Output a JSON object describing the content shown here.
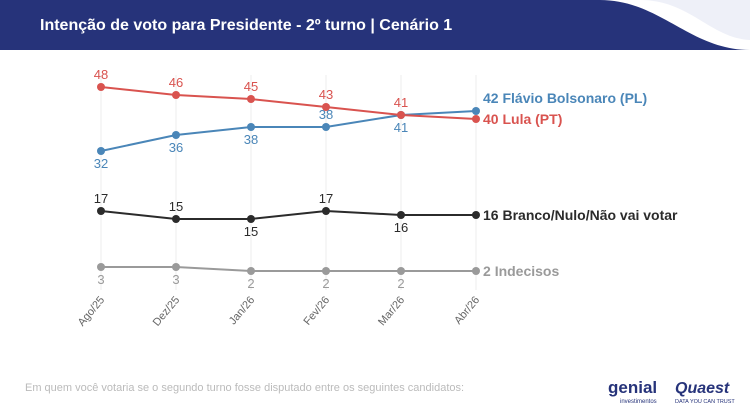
{
  "chart_data": {
    "type": "line",
    "title": "Intenção de voto para Presidente - 2º turno | Cenário 1",
    "categories": [
      "Ago/25",
      "Dez/25",
      "Jan/26",
      "Fev/26",
      "Mar/26",
      "Abr/26"
    ],
    "series": [
      {
        "name": "Flávio Bolsonaro (PL)",
        "color": "#4a86b8",
        "values": [
          32,
          36,
          38,
          38,
          41,
          42
        ]
      },
      {
        "name": "Lula (PT)",
        "color": "#d9534f",
        "values": [
          48,
          46,
          45,
          43,
          41,
          40
        ]
      },
      {
        "name": "Branco/Nulo/Não vai votar",
        "color": "#2b2b2b",
        "values": [
          17,
          15,
          15,
          17,
          16,
          16
        ]
      },
      {
        "name": "Indecisos",
        "color": "#9a9a9a",
        "values": [
          3,
          3,
          2,
          2,
          2,
          2
        ]
      }
    ],
    "ylim": [
      0,
      50
    ],
    "grid": true,
    "footnote": "Em quem você votaria se o segundo turno fosse disputado entre os seguintes candidatos:",
    "logos": {
      "genial": "genial",
      "genial_sub": "investimentos",
      "quaest": "Quaest",
      "quaest_sub": "DATA YOU CAN TRUST"
    }
  }
}
